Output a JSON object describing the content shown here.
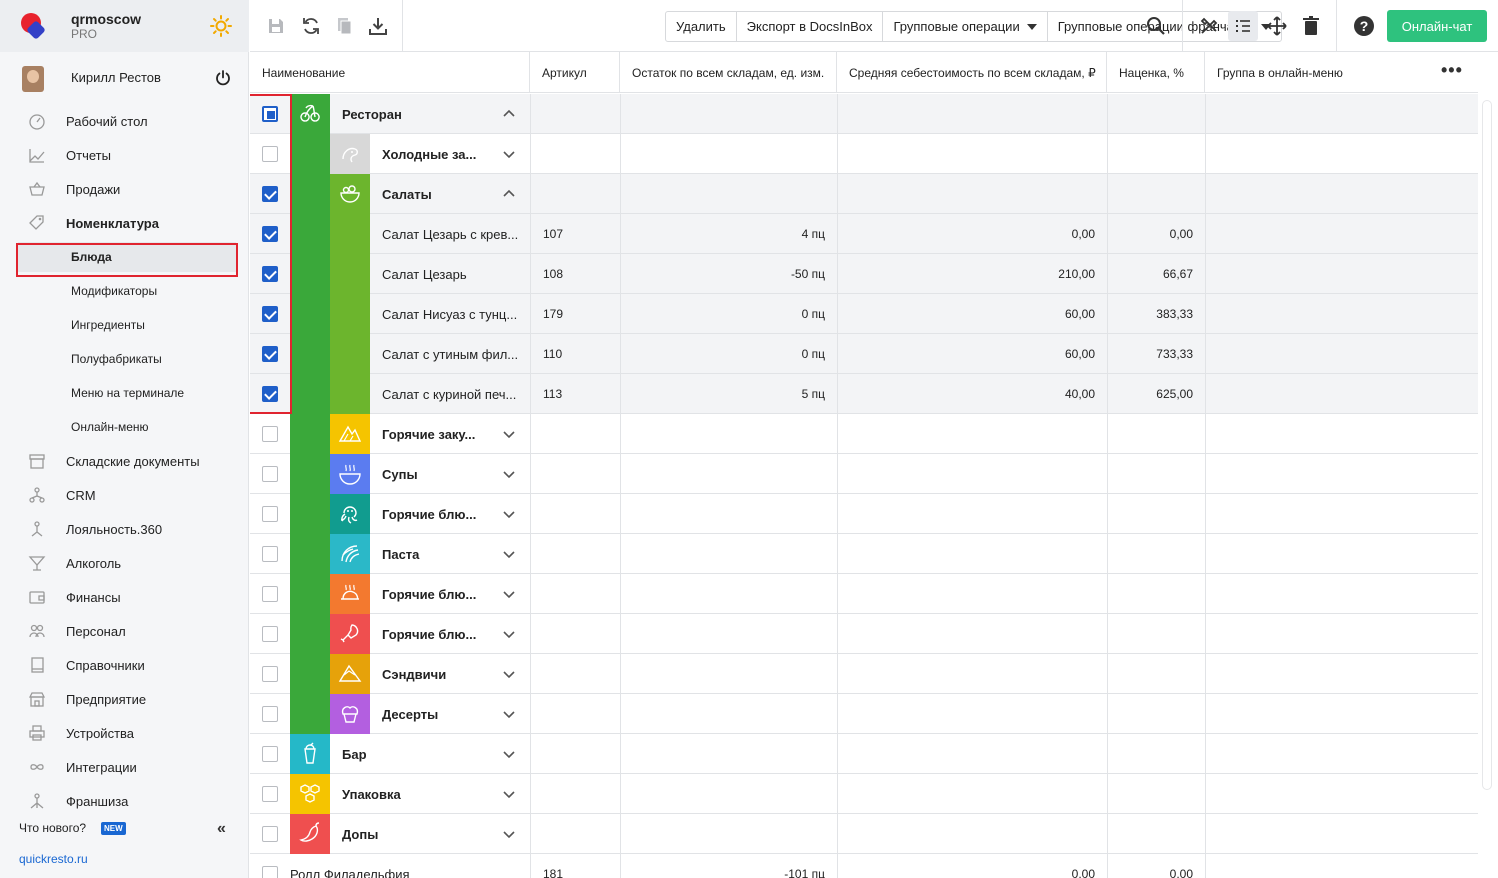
{
  "brand": {
    "name": "qrmoscow",
    "plan": "PRO"
  },
  "user": {
    "name": "Кирилл Рестов"
  },
  "nav": {
    "items": [
      {
        "label": "Рабочий стол",
        "icon": "dashboard-icon",
        "bold": false
      },
      {
        "label": "Отчеты",
        "icon": "chart-icon",
        "bold": false
      },
      {
        "label": "Продажи",
        "icon": "basket-icon",
        "bold": false
      },
      {
        "label": "Номенклатура",
        "icon": "tag-icon",
        "bold": true
      }
    ],
    "sub_items": [
      "Блюда",
      "Модификаторы",
      "Ингредиенты",
      "Полуфабрикаты",
      "Меню на терминале",
      "Онлайн-меню"
    ],
    "items2": [
      {
        "label": "Складские документы",
        "icon": "warehouse-icon"
      },
      {
        "label": "CRM",
        "icon": "crm-icon"
      },
      {
        "label": "Лояльность.360",
        "icon": "loyalty-icon"
      },
      {
        "label": "Алкоголь",
        "icon": "cocktail-icon"
      },
      {
        "label": "Финансы",
        "icon": "wallet-icon"
      },
      {
        "label": "Персонал",
        "icon": "people-icon"
      },
      {
        "label": "Справочники",
        "icon": "book-icon"
      },
      {
        "label": "Предприятие",
        "icon": "store-icon"
      },
      {
        "label": "Устройства",
        "icon": "printer-icon"
      },
      {
        "label": "Интеграции",
        "icon": "infinity-icon"
      },
      {
        "label": "Франшиза",
        "icon": "franchise-icon"
      }
    ],
    "whats_new": "Что нового?",
    "new_badge": "NEW",
    "site": "quickresto.ru"
  },
  "toolbar": {
    "buttons": [
      "Удалить",
      "Экспорт в DocsInBox",
      "Групповые операции",
      "Групповые операции франчайзи"
    ],
    "chat": "Онлайн-чат"
  },
  "table": {
    "headers": [
      "Наименование",
      "Артикул",
      "Остаток по всем складам, ед. изм.",
      "Средняя себестоимость по всем складам, ₽",
      "Наценка, %",
      "Группа в онлайн-меню"
    ],
    "rows": [
      {
        "name": "Ресторан",
        "level": 0,
        "checked": "partial",
        "expanded": true,
        "color": "#3aa83a",
        "icon": "cherry-icon",
        "sku": "",
        "stock": "",
        "cost": "",
        "markup": "",
        "group": true
      },
      {
        "name": "Холодные за...",
        "level": 1,
        "checked": "off",
        "expanded": false,
        "color": "#d8d8d8",
        "icon": "shrimp-icon",
        "sku": "",
        "stock": "",
        "cost": "",
        "markup": "",
        "group": true
      },
      {
        "name": "Салаты",
        "level": 1,
        "checked": "on",
        "expanded": true,
        "color": "#6cb52d",
        "icon": "salad-bowl-icon",
        "sku": "",
        "stock": "",
        "cost": "",
        "markup": "",
        "group": true
      },
      {
        "name": "Салат Цезарь с крев...",
        "level": 2,
        "checked": "on",
        "color": "#6cb52d",
        "sku": "107",
        "stock": "4 пц",
        "cost": "0,00",
        "markup": "0,00",
        "group": false
      },
      {
        "name": "Салат Цезарь",
        "level": 2,
        "checked": "on",
        "color": "#6cb52d",
        "sku": "108",
        "stock": "-50 пц",
        "cost": "210,00",
        "markup": "66,67",
        "group": false
      },
      {
        "name": "Салат Нисуаз с тунц...",
        "level": 2,
        "checked": "on",
        "color": "#6cb52d",
        "sku": "179",
        "stock": "0 пц",
        "cost": "60,00",
        "markup": "383,33",
        "group": false
      },
      {
        "name": "Салат с утиным фил...",
        "level": 2,
        "checked": "on",
        "color": "#6cb52d",
        "sku": "110",
        "stock": "0 пц",
        "cost": "60,00",
        "markup": "733,33",
        "group": false
      },
      {
        "name": "Салат с куриной печ...",
        "level": 2,
        "checked": "on",
        "color": "#6cb52d",
        "sku": "113",
        "stock": "5 пц",
        "cost": "40,00",
        "markup": "625,00",
        "group": false
      },
      {
        "name": "Горячие заку...",
        "level": 1,
        "checked": "off",
        "expanded": false,
        "color": "#f5c400",
        "icon": "nachos-icon",
        "sku": "",
        "stock": "",
        "cost": "",
        "markup": "",
        "group": true
      },
      {
        "name": "Супы",
        "level": 1,
        "checked": "off",
        "expanded": false,
        "color": "#5b7cf0",
        "icon": "soup-icon",
        "sku": "",
        "stock": "",
        "cost": "",
        "markup": "",
        "group": true
      },
      {
        "name": "Горячие блю...",
        "level": 1,
        "checked": "off",
        "expanded": false,
        "color": "#119c8f",
        "icon": "octopus-icon",
        "sku": "",
        "stock": "",
        "cost": "",
        "markup": "",
        "group": true
      },
      {
        "name": "Паста",
        "level": 1,
        "checked": "off",
        "expanded": false,
        "color": "#2bb8c8",
        "icon": "pasta-icon",
        "sku": "",
        "stock": "",
        "cost": "",
        "markup": "",
        "group": true
      },
      {
        "name": "Горячие блю...",
        "level": 1,
        "checked": "off",
        "expanded": false,
        "color": "#f3792f",
        "icon": "roast-chicken-icon",
        "sku": "",
        "stock": "",
        "cost": "",
        "markup": "",
        "group": true
      },
      {
        "name": "Горячие блю...",
        "level": 1,
        "checked": "off",
        "expanded": false,
        "color": "#ef4f4f",
        "icon": "drumstick-icon",
        "sku": "",
        "stock": "",
        "cost": "",
        "markup": "",
        "group": true
      },
      {
        "name": "Сэндвичи",
        "level": 1,
        "checked": "off",
        "expanded": false,
        "color": "#e6a20a",
        "icon": "sandwich-icon",
        "sku": "",
        "stock": "",
        "cost": "",
        "markup": "",
        "group": true
      },
      {
        "name": "Десерты",
        "level": 1,
        "checked": "off",
        "expanded": false,
        "color": "#b35fe0",
        "icon": "cupcake-icon",
        "sku": "",
        "stock": "",
        "cost": "",
        "markup": "",
        "group": true
      },
      {
        "name": "Бар",
        "level": 0,
        "checked": "off",
        "expanded": false,
        "color": "#25b8c8",
        "icon": "drink-icon",
        "sku": "",
        "stock": "",
        "cost": "",
        "markup": "",
        "group": true
      },
      {
        "name": "Упаковка",
        "level": 0,
        "checked": "off",
        "expanded": false,
        "color": "#f5c400",
        "icon": "hexagons-icon",
        "sku": "",
        "stock": "",
        "cost": "",
        "markup": "",
        "group": true
      },
      {
        "name": "Допы",
        "level": 0,
        "checked": "off",
        "expanded": false,
        "color": "#ef4f4f",
        "icon": "pepper-icon",
        "sku": "",
        "stock": "",
        "cost": "",
        "markup": "",
        "group": true
      },
      {
        "name": "Ролл Филадельфия",
        "level": -1,
        "checked": "off",
        "color": "",
        "sku": "181",
        "stock": "-101 пц",
        "cost": "0,00",
        "markup": "0,00",
        "group": false
      }
    ]
  }
}
